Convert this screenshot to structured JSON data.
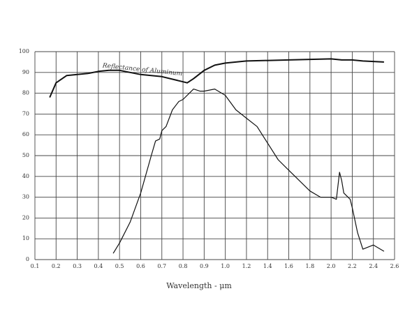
{
  "chart_data": {
    "type": "line",
    "annotation": "Reflectance of Aluminum",
    "x_label": "Wavelength - μm",
    "xlim": [
      0.1,
      2.6
    ],
    "xticks": [
      0.1,
      0.2,
      0.3,
      0.4,
      0.5,
      0.6,
      0.7,
      0.8,
      0.9,
      {
        "value": 1,
        "label": "1.0"
      },
      1.2,
      1.4,
      1.6,
      1.8,
      {
        "value": 2,
        "label": "2.0"
      },
      2.2,
      2.4,
      2.6
    ],
    "ylim": [
      0,
      100
    ],
    "yticks": [
      0,
      10,
      20,
      30,
      40,
      50,
      60,
      70,
      80,
      90,
      100
    ],
    "grid": true,
    "series": [
      {
        "name": "Reflectance of Aluminum",
        "color": "#111111",
        "x": [
          0.17,
          0.2,
          0.25,
          0.3,
          0.35,
          0.4,
          0.45,
          0.5,
          0.55,
          0.6,
          0.7,
          0.8,
          0.82,
          0.85,
          0.9,
          0.95,
          1.0,
          1.2,
          1.6,
          2.0,
          2.1,
          2.2,
          2.3,
          2.5
        ],
        "values": [
          78,
          85,
          88.5,
          89,
          89.5,
          90.5,
          91,
          91,
          90,
          89,
          88,
          85.5,
          85,
          87,
          91,
          93.5,
          94.5,
          95.5,
          96,
          96.5,
          96,
          96,
          95.5,
          95
        ]
      },
      {
        "color": "#111111",
        "x": [
          0.47,
          0.5,
          0.55,
          0.6,
          0.65,
          0.67,
          0.69,
          0.7,
          0.72,
          0.75,
          0.78,
          0.8,
          0.83,
          0.85,
          0.88,
          0.9,
          0.95,
          1.0,
          1.1,
          1.2,
          1.3,
          1.4,
          1.5,
          1.6,
          1.8,
          1.9,
          2.0,
          2.05,
          2.08,
          2.1,
          2.12,
          2.18,
          2.2,
          2.25,
          2.3,
          2.4,
          2.5
        ],
        "values": [
          3,
          8,
          18,
          32,
          50,
          57,
          58,
          62,
          64,
          72,
          76,
          77,
          80,
          82,
          81,
          81,
          82,
          79,
          72,
          68,
          64,
          56,
          48,
          43,
          33,
          30,
          30,
          29,
          42,
          38,
          32,
          29,
          25,
          13,
          5,
          7,
          4
        ]
      }
    ]
  }
}
